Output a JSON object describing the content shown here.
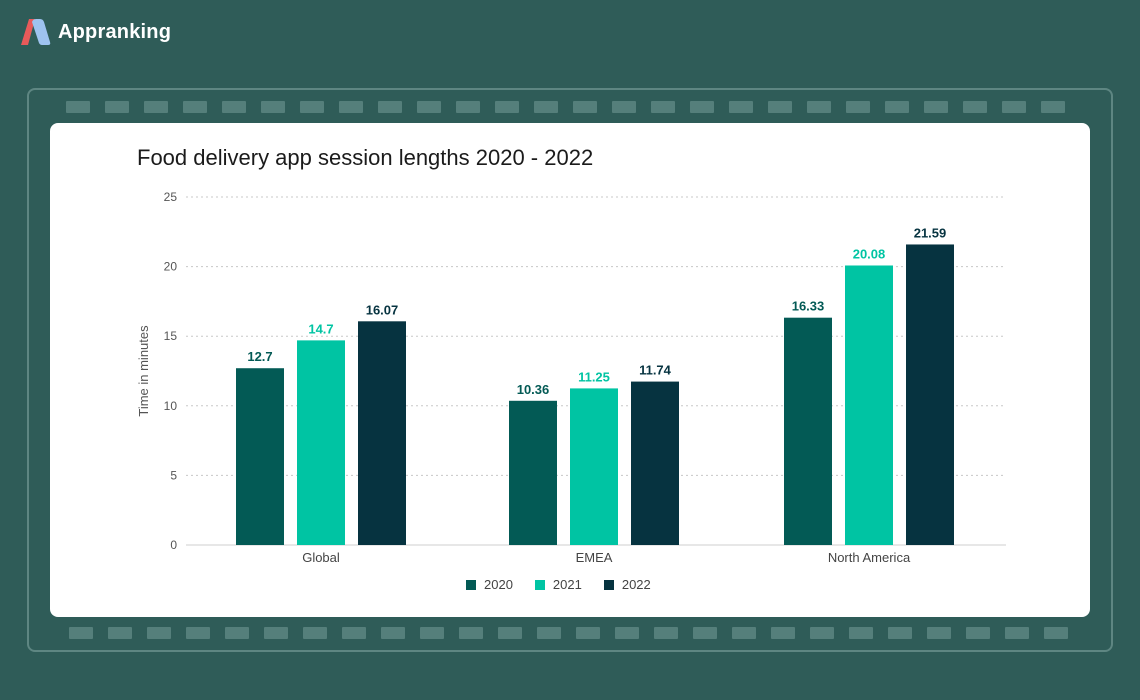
{
  "brand": {
    "name": "Appranking"
  },
  "colors": {
    "background": "#2f5c58",
    "card": "#ffffff",
    "series_2020": "#035a55",
    "series_2021": "#00c4a3",
    "series_2022": "#063340"
  },
  "chart_data": {
    "type": "bar",
    "title": "Food delivery app session lengths 2020 - 2022",
    "xlabel": "",
    "ylabel": "Time in minutes",
    "ylim": [
      0,
      25
    ],
    "yticks": [
      0,
      5,
      10,
      15,
      20,
      25
    ],
    "grid": true,
    "legend_position": "bottom-center",
    "categories": [
      "Global",
      "EMEA",
      "North America"
    ],
    "series": [
      {
        "name": "2020",
        "values": [
          12.7,
          10.36,
          16.33
        ],
        "color": "#035a55"
      },
      {
        "name": "2021",
        "values": [
          14.7,
          11.25,
          20.08
        ],
        "color": "#00c4a3"
      },
      {
        "name": "2022",
        "values": [
          16.07,
          11.74,
          21.59
        ],
        "color": "#063340"
      }
    ]
  }
}
